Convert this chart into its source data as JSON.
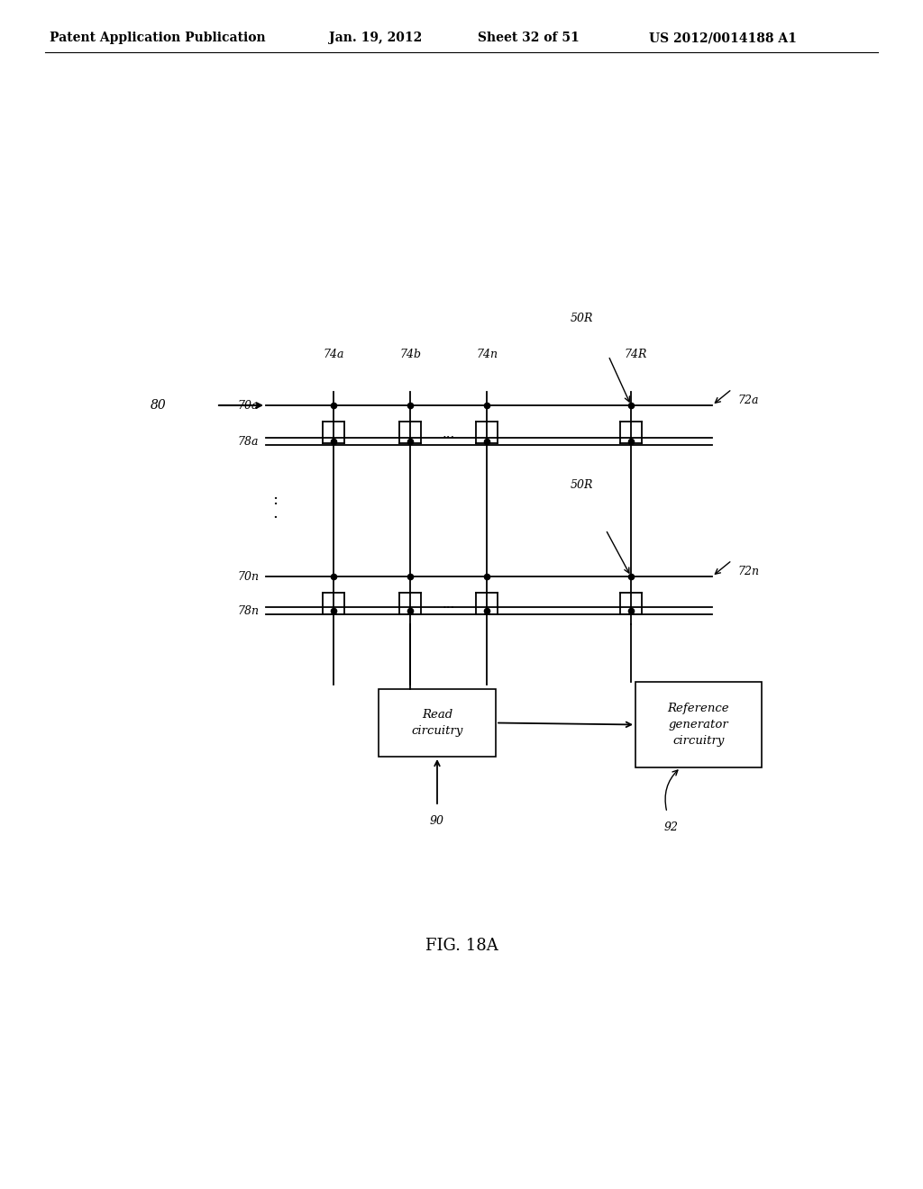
{
  "background_color": "#ffffff",
  "header_text": "Patent Application Publication",
  "header_date": "Jan. 19, 2012",
  "header_sheet": "Sheet 32 of 51",
  "header_patent": "US 2012/0014188 A1",
  "fig_label": "FIG. 18A",
  "label_80": "80",
  "label_70a": "70a",
  "label_78a": "78a",
  "label_70n": "70n",
  "label_78n": "78n",
  "label_72a": "72a",
  "label_72n": "72n",
  "label_74a": "74a",
  "label_74b": "74b",
  "label_74n": "74n",
  "label_74R": "74R",
  "label_50R_top": "50R",
  "label_50R_mid": "50R",
  "label_90": "90",
  "label_92": "92",
  "read_box_text": "Read\ncircuitry",
  "ref_box_text": "Reference\ngenerator\ncircuitry",
  "font_size_header": 10,
  "font_size_labels": 9,
  "font_size_fig": 13
}
